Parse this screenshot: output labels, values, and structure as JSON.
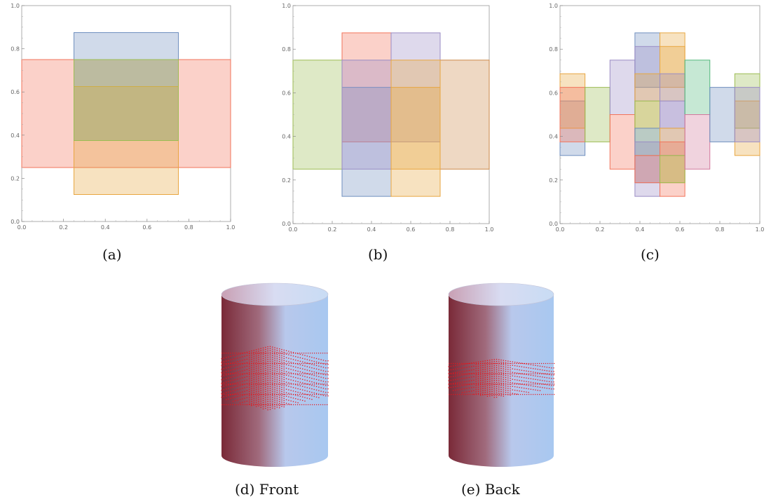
{
  "captions": {
    "a": "(a)",
    "b": "(b)",
    "c": "(c)",
    "d": "(d)  Front",
    "e": "(e)  Back"
  },
  "palette": {
    "blue": "#6f8fbf",
    "red": "#f2735a",
    "gold": "#e8a640",
    "green": "#9cbc52",
    "purple": "#9a8cc4",
    "brown": "#cc8848",
    "teal": "#52b87c",
    "pink": "#d2789c",
    "dot": "#e8151b"
  },
  "chart_data": [
    {
      "type": "area",
      "id": "a",
      "xlim": [
        0.0,
        1.0
      ],
      "ylim": [
        0.0,
        1.0
      ],
      "xticks": [
        "0.0",
        "0.2",
        "0.4",
        "0.6",
        "0.8",
        "1.0"
      ],
      "yticks": [
        "0.0",
        "0.2",
        "0.4",
        "0.6",
        "0.8",
        "1.0"
      ],
      "rects": [
        {
          "x": [
            0.0,
            1.0
          ],
          "y": [
            0.25,
            0.75
          ],
          "color": "red"
        },
        {
          "x": [
            0.25,
            0.75
          ],
          "y": [
            0.375,
            0.875
          ],
          "color": "blue"
        },
        {
          "x": [
            0.25,
            0.75
          ],
          "y": [
            0.125,
            0.625
          ],
          "color": "gold"
        },
        {
          "x": [
            0.25,
            0.75
          ],
          "y": [
            0.375,
            0.75
          ],
          "color": "green"
        }
      ]
    },
    {
      "type": "area",
      "id": "b",
      "xlim": [
        0.0,
        1.0
      ],
      "ylim": [
        0.0,
        1.0
      ],
      "xticks": [
        "0.0",
        "0.2",
        "0.4",
        "0.6",
        "0.8",
        "1.0"
      ],
      "yticks": [
        "0.0",
        "0.2",
        "0.4",
        "0.6",
        "0.8",
        "1.0"
      ],
      "rects": [
        {
          "x": [
            0.0,
            0.25
          ],
          "y": [
            0.25,
            0.75
          ],
          "color": "green"
        },
        {
          "x": [
            0.75,
            1.0
          ],
          "y": [
            0.25,
            0.75
          ],
          "color": "brown"
        },
        {
          "x": [
            0.25,
            0.5
          ],
          "y": [
            0.375,
            0.875
          ],
          "color": "red"
        },
        {
          "x": [
            0.5,
            0.75
          ],
          "y": [
            0.375,
            0.875
          ],
          "color": "purple"
        },
        {
          "x": [
            0.25,
            0.5
          ],
          "y": [
            0.125,
            0.625
          ],
          "color": "blue"
        },
        {
          "x": [
            0.5,
            0.75
          ],
          "y": [
            0.125,
            0.625
          ],
          "color": "gold"
        },
        {
          "x": [
            0.25,
            0.5
          ],
          "y": [
            0.25,
            0.75
          ],
          "color": "purple"
        },
        {
          "x": [
            0.5,
            0.75
          ],
          "y": [
            0.25,
            0.75
          ],
          "color": "gold"
        }
      ]
    },
    {
      "type": "area",
      "id": "c",
      "xlim": [
        0.0,
        1.0
      ],
      "ylim": [
        0.0,
        1.0
      ],
      "xticks": [
        "0.0",
        "0.2",
        "0.4",
        "0.6",
        "0.8",
        "1.0"
      ],
      "yticks": [
        "0.0",
        "0.2",
        "0.4",
        "0.6",
        "0.8",
        "1.0"
      ],
      "rects": [
        {
          "x": [
            0.0,
            0.125
          ],
          "y": [
            0.3125,
            0.5625
          ],
          "color": "blue"
        },
        {
          "x": [
            0.0,
            0.125
          ],
          "y": [
            0.4375,
            0.6875
          ],
          "color": "gold"
        },
        {
          "x": [
            0.0,
            0.125
          ],
          "y": [
            0.375,
            0.625
          ],
          "color": "red"
        },
        {
          "x": [
            0.125,
            0.25
          ],
          "y": [
            0.375,
            0.625
          ],
          "color": "green"
        },
        {
          "x": [
            0.25,
            0.375
          ],
          "y": [
            0.5,
            0.75
          ],
          "color": "purple"
        },
        {
          "x": [
            0.25,
            0.375
          ],
          "y": [
            0.25,
            0.5
          ],
          "color": "red"
        },
        {
          "x": [
            0.375,
            0.5
          ],
          "y": [
            0.625,
            0.875
          ],
          "color": "blue"
        },
        {
          "x": [
            0.375,
            0.5
          ],
          "y": [
            0.5625,
            0.8125
          ],
          "color": "purple"
        },
        {
          "x": [
            0.375,
            0.5
          ],
          "y": [
            0.4375,
            0.6875
          ],
          "color": "gold"
        },
        {
          "x": [
            0.375,
            0.5
          ],
          "y": [
            0.3125,
            0.5625
          ],
          "color": "green"
        },
        {
          "x": [
            0.375,
            0.5
          ],
          "y": [
            0.1875,
            0.4375
          ],
          "color": "blue"
        },
        {
          "x": [
            0.375,
            0.5
          ],
          "y": [
            0.125,
            0.375
          ],
          "color": "purple"
        },
        {
          "x": [
            0.375,
            0.5
          ],
          "y": [
            0.1875,
            0.3125
          ],
          "color": "red"
        },
        {
          "x": [
            0.5,
            0.625
          ],
          "y": [
            0.625,
            0.875
          ],
          "color": "gold"
        },
        {
          "x": [
            0.5,
            0.625
          ],
          "y": [
            0.5625,
            0.8125
          ],
          "color": "gold"
        },
        {
          "x": [
            0.5,
            0.625
          ],
          "y": [
            0.4375,
            0.6875
          ],
          "color": "purple"
        },
        {
          "x": [
            0.5,
            0.625
          ],
          "y": [
            0.3125,
            0.5625
          ],
          "color": "purple"
        },
        {
          "x": [
            0.5,
            0.625
          ],
          "y": [
            0.1875,
            0.4375
          ],
          "color": "gold"
        },
        {
          "x": [
            0.5,
            0.625
          ],
          "y": [
            0.125,
            0.375
          ],
          "color": "red"
        },
        {
          "x": [
            0.5,
            0.625
          ],
          "y": [
            0.1875,
            0.3125
          ],
          "color": "green"
        },
        {
          "x": [
            0.625,
            0.75
          ],
          "y": [
            0.5,
            0.75
          ],
          "color": "teal"
        },
        {
          "x": [
            0.625,
            0.75
          ],
          "y": [
            0.25,
            0.5
          ],
          "color": "pink"
        },
        {
          "x": [
            0.75,
            0.875
          ],
          "y": [
            0.375,
            0.625
          ],
          "color": "blue"
        },
        {
          "x": [
            0.875,
            1.0
          ],
          "y": [
            0.4375,
            0.6875
          ],
          "color": "green"
        },
        {
          "x": [
            0.875,
            1.0
          ],
          "y": [
            0.3125,
            0.5625
          ],
          "color": "gold"
        },
        {
          "x": [
            0.875,
            1.0
          ],
          "y": [
            0.375,
            0.625
          ],
          "color": "purple"
        }
      ]
    }
  ],
  "cylinders": [
    {
      "id": "d",
      "band_rows": 6,
      "band_half_height": 0.2
    },
    {
      "id": "e",
      "band_rows": 4,
      "band_half_height": 0.12
    }
  ]
}
